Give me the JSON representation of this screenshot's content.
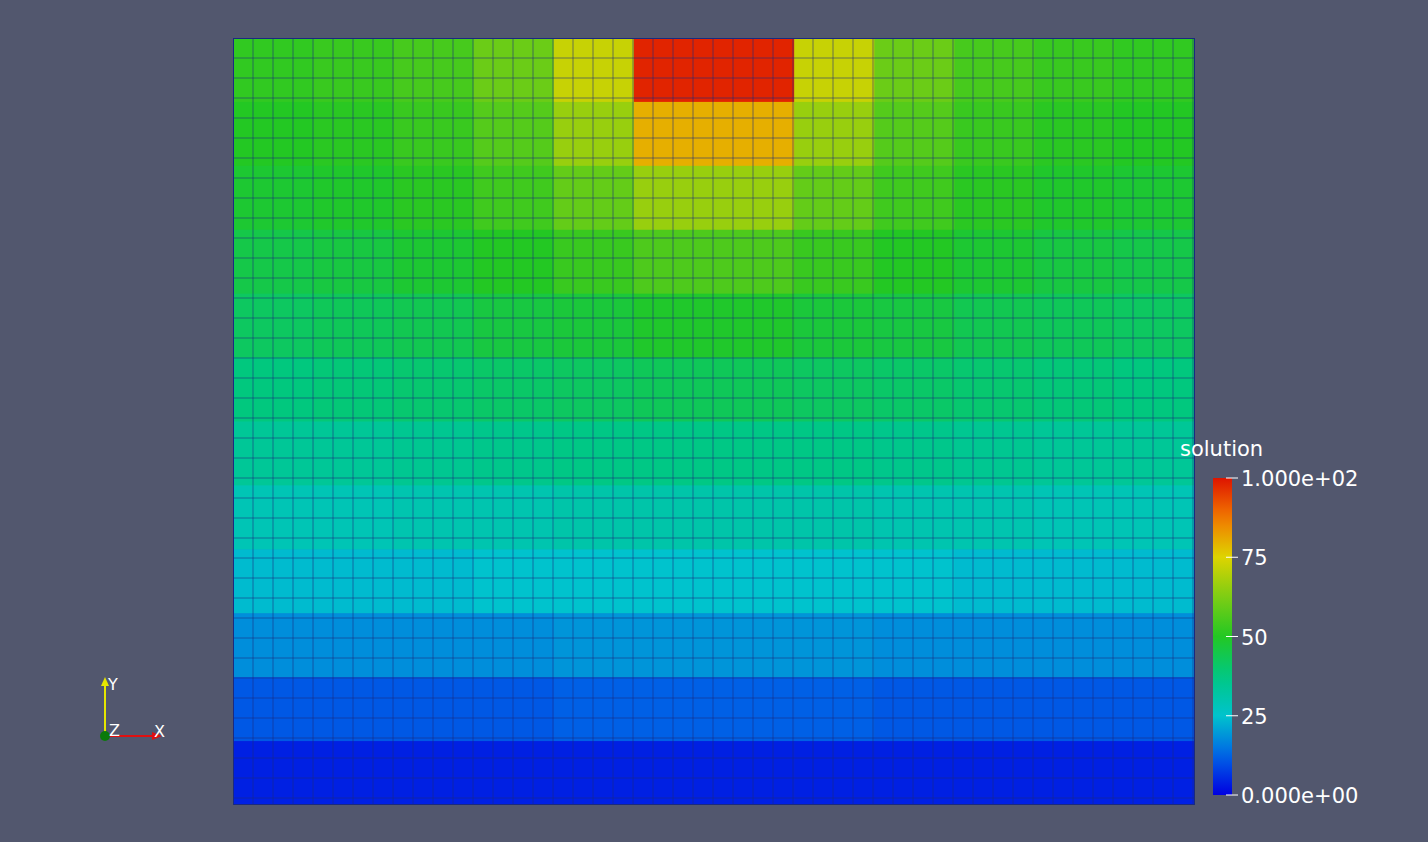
{
  "chart_data": {
    "type": "heatmap",
    "title": "solution",
    "cells": [
      [
        52,
        53,
        55,
        60,
        72,
        98,
        98,
        72,
        60,
        55,
        53,
        52
      ],
      [
        50,
        51,
        53,
        57,
        66,
        80,
        80,
        66,
        57,
        53,
        51,
        50
      ],
      [
        48,
        49,
        51,
        54,
        59,
        66,
        66,
        59,
        54,
        51,
        49,
        48
      ],
      [
        45,
        46,
        48,
        50,
        53,
        56,
        56,
        53,
        50,
        48,
        46,
        45
      ],
      [
        42,
        43,
        44,
        46,
        47,
        49,
        49,
        47,
        46,
        44,
        43,
        42
      ],
      [
        38,
        39,
        40,
        41,
        42,
        43,
        43,
        42,
        41,
        40,
        39,
        38
      ],
      [
        34,
        34,
        35,
        36,
        37,
        37,
        37,
        37,
        36,
        35,
        34,
        34
      ],
      [
        29,
        29,
        30,
        30,
        31,
        31,
        31,
        31,
        30,
        30,
        29,
        29
      ],
      [
        24,
        24,
        24,
        25,
        25,
        25,
        25,
        25,
        25,
        24,
        24,
        24
      ],
      [
        18,
        18,
        18,
        18,
        19,
        19,
        19,
        19,
        18,
        18,
        18,
        18
      ],
      [
        11,
        11,
        11,
        11,
        12,
        12,
        12,
        12,
        11,
        11,
        11,
        11
      ],
      [
        4,
        4,
        4,
        4,
        4,
        4,
        4,
        4,
        4,
        4,
        4,
        4
      ]
    ],
    "colorbar_range": [
      0,
      100
    ],
    "colorbar_ticks": [
      {
        "value": 0,
        "label": "0.000e+00"
      },
      25,
      50,
      75,
      {
        "value": 100,
        "label": "1.000e+02"
      }
    ],
    "tick_labels": false,
    "grid": true,
    "axis_labels": [
      "X",
      "Y",
      "Z"
    ]
  }
}
